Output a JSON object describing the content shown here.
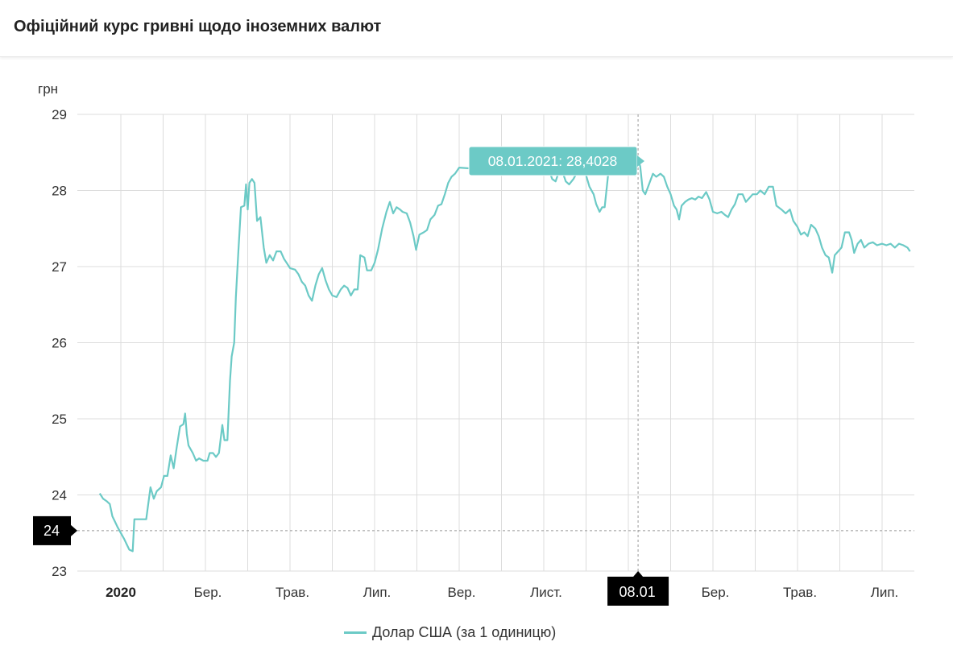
{
  "page_title": "Офіційний курс гривні щодо іноземних валют",
  "chart_data": {
    "type": "line",
    "title": "Офіційний курс гривні щодо іноземних валют",
    "ylabel": "грн",
    "xlabel": "",
    "ylim": [
      23,
      29
    ],
    "y_ticks": [
      "23",
      "24",
      "25",
      "26",
      "27",
      "28",
      "29"
    ],
    "x_tick_labels": [
      "2020",
      "Бер.",
      "Трав.",
      "Лип.",
      "Вер.",
      "Лист.",
      "Бер.",
      "Трав.",
      "Лип."
    ],
    "x_tick_months": [
      0,
      2,
      4,
      6,
      8,
      10,
      14,
      16,
      18
    ],
    "x_range_months": [
      -0.5,
      18.66
    ],
    "grid": true,
    "legend": "bottom-center",
    "crosshair": {
      "x_label": "08.01",
      "x_month": 12.23,
      "y_label": "24",
      "y_value": 23.53
    },
    "tooltip": "08.01.2021: 28,4028",
    "series": [
      {
        "name": "Долар США (за 1 одиницю)",
        "color": "#6ccac6",
        "points": [
          [
            -0.5,
            24.02
          ],
          [
            -0.42,
            23.95
          ],
          [
            -0.34,
            23.92
          ],
          [
            -0.26,
            23.88
          ],
          [
            -0.2,
            23.72
          ],
          [
            -0.14,
            23.65
          ],
          [
            -0.08,
            23.58
          ],
          [
            0.0,
            23.5
          ],
          [
            0.08,
            23.42
          ],
          [
            0.14,
            23.35
          ],
          [
            0.2,
            23.28
          ],
          [
            0.28,
            23.26
          ],
          [
            0.32,
            23.68
          ],
          [
            0.45,
            23.68
          ],
          [
            0.6,
            23.68
          ],
          [
            0.7,
            24.1
          ],
          [
            0.78,
            23.95
          ],
          [
            0.85,
            24.05
          ],
          [
            0.95,
            24.1
          ],
          [
            1.02,
            24.25
          ],
          [
            1.1,
            24.25
          ],
          [
            1.18,
            24.52
          ],
          [
            1.25,
            24.35
          ],
          [
            1.32,
            24.62
          ],
          [
            1.4,
            24.9
          ],
          [
            1.48,
            24.93
          ],
          [
            1.52,
            25.07
          ],
          [
            1.56,
            24.8
          ],
          [
            1.6,
            24.65
          ],
          [
            1.7,
            24.55
          ],
          [
            1.78,
            24.45
          ],
          [
            1.85,
            24.48
          ],
          [
            1.95,
            24.45
          ],
          [
            2.05,
            24.45
          ],
          [
            2.1,
            24.55
          ],
          [
            2.18,
            24.55
          ],
          [
            2.25,
            24.5
          ],
          [
            2.32,
            24.55
          ],
          [
            2.4,
            24.92
          ],
          [
            2.45,
            24.72
          ],
          [
            2.52,
            24.72
          ],
          [
            2.58,
            25.5
          ],
          [
            2.62,
            25.82
          ],
          [
            2.68,
            26.0
          ],
          [
            2.72,
            26.6
          ],
          [
            2.78,
            27.2
          ],
          [
            2.84,
            27.78
          ],
          [
            2.92,
            27.8
          ],
          [
            2.96,
            28.08
          ],
          [
            3.0,
            27.75
          ],
          [
            3.04,
            28.1
          ],
          [
            3.1,
            28.15
          ],
          [
            3.16,
            28.1
          ],
          [
            3.22,
            27.6
          ],
          [
            3.3,
            27.65
          ],
          [
            3.38,
            27.25
          ],
          [
            3.44,
            27.05
          ],
          [
            3.52,
            27.15
          ],
          [
            3.6,
            27.08
          ],
          [
            3.68,
            27.2
          ],
          [
            3.78,
            27.2
          ],
          [
            3.86,
            27.1
          ],
          [
            3.92,
            27.05
          ],
          [
            4.0,
            26.98
          ],
          [
            4.12,
            26.96
          ],
          [
            4.2,
            26.9
          ],
          [
            4.28,
            26.8
          ],
          [
            4.36,
            26.75
          ],
          [
            4.44,
            26.62
          ],
          [
            4.52,
            26.55
          ],
          [
            4.6,
            26.75
          ],
          [
            4.68,
            26.9
          ],
          [
            4.76,
            26.98
          ],
          [
            4.84,
            26.82
          ],
          [
            4.92,
            26.7
          ],
          [
            5.0,
            26.62
          ],
          [
            5.1,
            26.6
          ],
          [
            5.2,
            26.7
          ],
          [
            5.28,
            26.75
          ],
          [
            5.36,
            26.72
          ],
          [
            5.44,
            26.62
          ],
          [
            5.52,
            26.7
          ],
          [
            5.6,
            26.7
          ],
          [
            5.66,
            27.15
          ],
          [
            5.76,
            27.12
          ],
          [
            5.82,
            26.95
          ],
          [
            5.92,
            26.95
          ],
          [
            6.0,
            27.05
          ],
          [
            6.08,
            27.22
          ],
          [
            6.18,
            27.5
          ],
          [
            6.28,
            27.72
          ],
          [
            6.36,
            27.85
          ],
          [
            6.44,
            27.7
          ],
          [
            6.52,
            27.78
          ],
          [
            6.6,
            27.75
          ],
          [
            6.66,
            27.72
          ],
          [
            6.76,
            27.7
          ],
          [
            6.84,
            27.58
          ],
          [
            6.92,
            27.4
          ],
          [
            6.98,
            27.22
          ],
          [
            7.06,
            27.42
          ],
          [
            7.16,
            27.45
          ],
          [
            7.24,
            27.48
          ],
          [
            7.32,
            27.62
          ],
          [
            7.42,
            27.68
          ],
          [
            7.5,
            27.8
          ],
          [
            7.58,
            27.82
          ],
          [
            7.66,
            27.95
          ],
          [
            7.74,
            28.1
          ],
          [
            7.82,
            28.18
          ],
          [
            7.9,
            28.22
          ],
          [
            8.0,
            28.3
          ],
          [
            8.5,
            28.28
          ],
          [
            9.0,
            28.3
          ],
          [
            9.5,
            28.28
          ],
          [
            10.1,
            28.3
          ],
          [
            10.2,
            28.15
          ],
          [
            10.28,
            28.12
          ],
          [
            10.36,
            28.25
          ],
          [
            10.44,
            28.25
          ],
          [
            10.52,
            28.12
          ],
          [
            10.6,
            28.08
          ],
          [
            10.7,
            28.15
          ],
          [
            10.8,
            28.25
          ],
          [
            10.9,
            28.28
          ],
          [
            11.0,
            28.2
          ],
          [
            11.08,
            28.05
          ],
          [
            11.18,
            27.95
          ],
          [
            11.24,
            27.82
          ],
          [
            11.32,
            27.72
          ],
          [
            11.38,
            27.78
          ],
          [
            11.44,
            27.78
          ],
          [
            11.52,
            28.2
          ],
          [
            11.62,
            28.42
          ],
          [
            11.7,
            28.42
          ],
          [
            11.8,
            28.3
          ],
          [
            11.86,
            28.36
          ],
          [
            11.92,
            28.4
          ],
          [
            12.0,
            28.25
          ],
          [
            12.08,
            28.25
          ],
          [
            12.16,
            28.2
          ],
          [
            12.23,
            28.4
          ],
          [
            12.28,
            28.32
          ],
          [
            12.34,
            28.0
          ],
          [
            12.4,
            27.95
          ],
          [
            12.5,
            28.1
          ],
          [
            12.58,
            28.22
          ],
          [
            12.66,
            28.18
          ],
          [
            12.76,
            28.22
          ],
          [
            12.84,
            28.18
          ],
          [
            12.92,
            28.05
          ],
          [
            13.0,
            27.95
          ],
          [
            13.08,
            27.8
          ],
          [
            13.14,
            27.75
          ],
          [
            13.2,
            27.62
          ],
          [
            13.26,
            27.8
          ],
          [
            13.34,
            27.85
          ],
          [
            13.42,
            27.88
          ],
          [
            13.5,
            27.9
          ],
          [
            13.58,
            27.88
          ],
          [
            13.66,
            27.92
          ],
          [
            13.74,
            27.9
          ],
          [
            13.84,
            27.98
          ],
          [
            13.92,
            27.88
          ],
          [
            14.0,
            27.72
          ],
          [
            14.1,
            27.7
          ],
          [
            14.2,
            27.72
          ],
          [
            14.28,
            27.68
          ],
          [
            14.36,
            27.65
          ],
          [
            14.44,
            27.75
          ],
          [
            14.52,
            27.82
          ],
          [
            14.6,
            27.95
          ],
          [
            14.7,
            27.95
          ],
          [
            14.78,
            27.85
          ],
          [
            14.86,
            27.9
          ],
          [
            14.94,
            27.95
          ],
          [
            15.04,
            27.95
          ],
          [
            15.12,
            28.0
          ],
          [
            15.22,
            27.95
          ],
          [
            15.32,
            28.05
          ],
          [
            15.42,
            28.05
          ],
          [
            15.5,
            27.8
          ],
          [
            15.62,
            27.75
          ],
          [
            15.72,
            27.7
          ],
          [
            15.82,
            27.75
          ],
          [
            15.9,
            27.6
          ],
          [
            16.0,
            27.52
          ],
          [
            16.08,
            27.42
          ],
          [
            16.16,
            27.45
          ],
          [
            16.24,
            27.4
          ],
          [
            16.32,
            27.55
          ],
          [
            16.42,
            27.5
          ],
          [
            16.5,
            27.4
          ],
          [
            16.58,
            27.25
          ],
          [
            16.66,
            27.15
          ],
          [
            16.74,
            27.12
          ],
          [
            16.82,
            26.92
          ],
          [
            16.88,
            27.15
          ],
          [
            16.96,
            27.2
          ],
          [
            17.04,
            27.25
          ],
          [
            17.12,
            27.45
          ],
          [
            17.22,
            27.45
          ],
          [
            17.28,
            27.35
          ],
          [
            17.34,
            27.18
          ],
          [
            17.42,
            27.3
          ],
          [
            17.5,
            27.35
          ],
          [
            17.58,
            27.25
          ],
          [
            17.68,
            27.3
          ],
          [
            17.78,
            27.32
          ],
          [
            17.88,
            27.28
          ],
          [
            18.0,
            27.3
          ],
          [
            18.1,
            27.28
          ],
          [
            18.2,
            27.3
          ],
          [
            18.3,
            27.25
          ],
          [
            18.4,
            27.3
          ],
          [
            18.5,
            27.28
          ],
          [
            18.6,
            27.25
          ],
          [
            18.66,
            27.2
          ]
        ]
      }
    ]
  }
}
